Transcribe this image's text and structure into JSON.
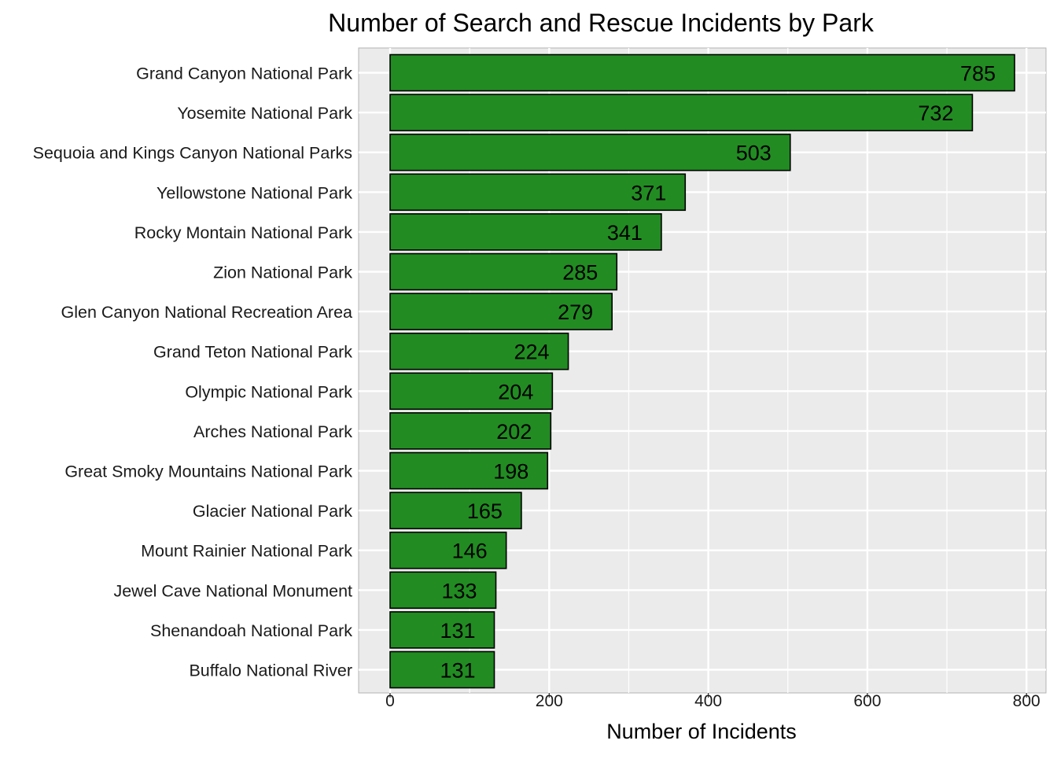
{
  "chart_data": {
    "type": "bar",
    "orientation": "horizontal",
    "title": "Number of Search and Rescue Incidents by Park",
    "xlabel": "Number of Incidents",
    "ylabel": "",
    "categories": [
      "Grand Canyon National Park",
      "Yosemite National Park",
      "Sequoia and Kings Canyon National Parks",
      "Yellowstone National Park",
      "Rocky Montain National Park",
      "Zion National Park",
      "Glen Canyon National Recreation Area",
      "Grand Teton National Park",
      "Olympic National Park",
      "Arches National Park",
      "Great Smoky Mountains National Park",
      "Glacier National Park",
      "Mount Rainier National Park",
      "Jewel Cave National Monument",
      "Shenandoah National Park",
      "Buffalo National River"
    ],
    "values": [
      785,
      732,
      503,
      371,
      341,
      285,
      279,
      224,
      204,
      202,
      198,
      165,
      146,
      133,
      131,
      131
    ],
    "data_labels": [
      "785",
      "732",
      "503",
      "371",
      "341",
      "285",
      "279",
      "224",
      "204",
      "202",
      "198",
      "165",
      "146",
      "133",
      "131",
      "131"
    ],
    "xlim": [
      -38,
      821
    ],
    "xticks": [
      0,
      200,
      400,
      600,
      800
    ],
    "xtick_labels": [
      "0",
      "200",
      "400",
      "600",
      "800"
    ],
    "grid": true,
    "legend": "none",
    "colors": {
      "bar_fill": "#228B22",
      "bar_outline": "#000000",
      "panel_background": "#EBEBEB",
      "grid": "#FFFFFF",
      "panel_border": "#B3B3B3"
    }
  }
}
